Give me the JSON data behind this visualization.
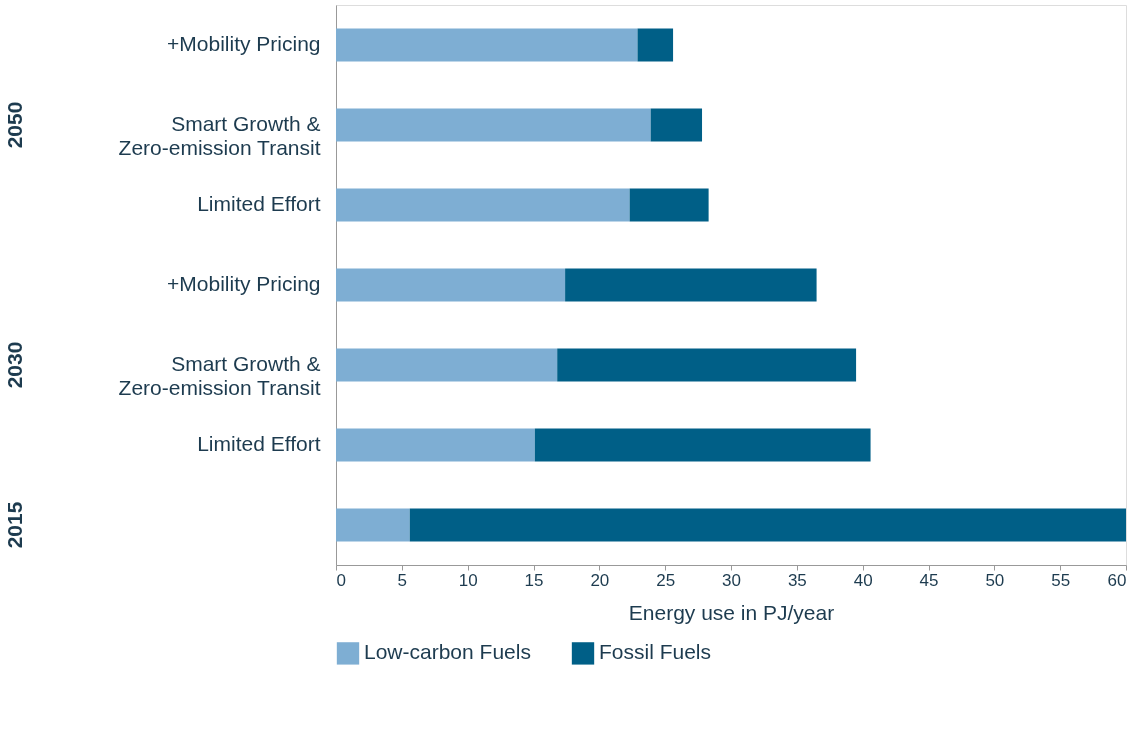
{
  "chart_data": {
    "type": "bar",
    "orientation": "horizontal",
    "stacked": true,
    "categories": [
      "+Mobility Pricing",
      "Smart Growth &\nZero-emission Transit",
      "Limited Effort",
      "+Mobility Pricing",
      "Smart Growth &\nZero-emission Transit",
      "Limited Effort",
      null
    ],
    "series": [
      {
        "name": "Low-carbon Fuels",
        "color": "#7eaed3",
        "values": [
          22.9,
          23.9,
          22.3,
          17.4,
          16.8,
          15.1,
          5.6
        ]
      },
      {
        "name": "Fossil Fuels",
        "color": "#005f87",
        "values": [
          2.7,
          3.9,
          6.0,
          19.1,
          22.7,
          25.5,
          54.4
        ]
      }
    ],
    "xlabel": "Energy use in PJ/year",
    "xlim": [
      0,
      60
    ],
    "xticks": [
      0,
      5,
      10,
      15,
      20,
      25,
      30,
      35,
      40,
      45,
      50,
      55,
      60
    ],
    "annotations": [
      "2050",
      "2030",
      "2015"
    ],
    "grid": false,
    "legend": "bottom"
  }
}
